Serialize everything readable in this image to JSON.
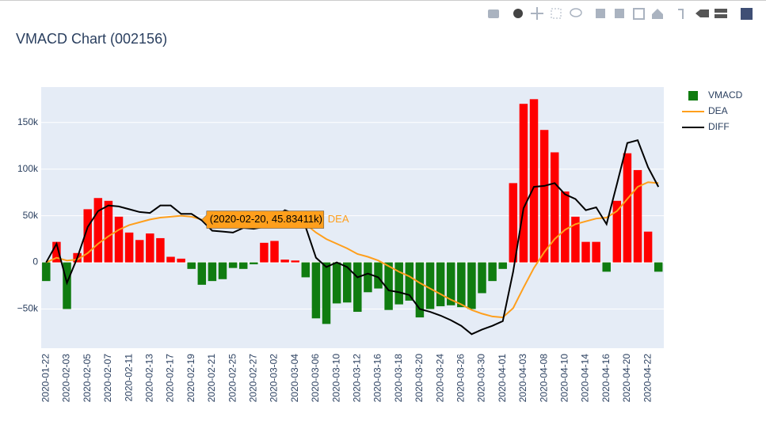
{
  "chart_data": {
    "type": "macd",
    "title": "VMACD Chart (002156)",
    "categories": [
      "2020-01-22",
      null,
      "2020-02-03",
      null,
      "2020-02-05",
      null,
      "2020-02-07",
      null,
      "2020-02-11",
      null,
      "2020-02-13",
      null,
      "2020-02-17",
      null,
      "2020-02-19",
      null,
      "2020-02-21",
      null,
      "2020-02-25",
      null,
      "2020-02-27",
      null,
      "2020-03-02",
      null,
      "2020-03-04",
      null,
      "2020-03-06",
      null,
      "2020-03-10",
      null,
      "2020-03-12",
      null,
      "2020-03-16",
      null,
      "2020-03-18",
      null,
      "2020-03-20",
      null,
      "2020-03-24",
      null,
      "2020-03-26",
      null,
      "2020-03-30",
      null,
      "2020-04-01",
      null,
      "2020-04-03",
      null,
      "2020-04-08",
      null,
      "2020-04-10",
      null,
      "2020-04-14",
      null,
      "2020-04-16",
      null,
      "2020-04-20",
      null,
      "2020-04-22",
      null
    ],
    "series": [
      {
        "name": "VMACD",
        "type": "bar",
        "color": "#107c10",
        "up_color": "#ff0000",
        "values": [
          -20000,
          22000,
          -50000,
          10000,
          57000,
          69000,
          66000,
          49000,
          32000,
          24000,
          31000,
          26000,
          6000,
          4000,
          -7000,
          -24000,
          -20000,
          -18000,
          -6000,
          -7000,
          -2000,
          21000,
          23000,
          3000,
          2000,
          -16000,
          -60000,
          -66000,
          -44000,
          -43000,
          -53000,
          -32000,
          -28000,
          -51000,
          -45000,
          -41000,
          -59000,
          -50000,
          -47000,
          -46000,
          -48000,
          -50000,
          -33000,
          -20000,
          -7000,
          85000,
          170000,
          175000,
          142000,
          118000,
          76000,
          49000,
          22000,
          22000,
          -10000,
          66000,
          117000,
          99000,
          33000,
          -10000
        ]
      },
      {
        "name": "DEA",
        "type": "line",
        "color": "#ff9f1c",
        "values": [
          0,
          5000,
          2000,
          3000,
          10000,
          20000,
          28000,
          35000,
          40000,
          43000,
          46000,
          48000,
          49000,
          50000,
          49000,
          45834.11,
          43000,
          41000,
          39000,
          39000,
          38000,
          38000,
          40000,
          42000,
          44000,
          41000,
          32000,
          25000,
          20000,
          15000,
          9000,
          6000,
          2000,
          -4000,
          -10000,
          -15000,
          -22000,
          -28000,
          -34000,
          -40000,
          -45000,
          -51000,
          -55000,
          -58000,
          -59000,
          -49000,
          -27000,
          -6000,
          11000,
          25000,
          35000,
          41000,
          44000,
          47000,
          48000,
          55000,
          68000,
          81000,
          86000,
          85000
        ]
      },
      {
        "name": "DIFF",
        "type": "line",
        "color": "#000000",
        "values": [
          0,
          20000,
          -22000,
          5000,
          38000,
          55000,
          61000,
          60000,
          57000,
          54000,
          53000,
          61000,
          61000,
          52000,
          52000,
          45000,
          34000,
          33000,
          32000,
          37000,
          36000,
          38000,
          48000,
          56000,
          52000,
          38000,
          5000,
          -5000,
          0,
          -5000,
          -16000,
          -12000,
          -16000,
          -30000,
          -32000,
          -35000,
          -50000,
          -53000,
          -57000,
          -62000,
          -68000,
          -77000,
          -72000,
          -68000,
          -63000,
          -10000,
          58000,
          81000,
          82000,
          85000,
          73000,
          68000,
          56000,
          59000,
          41000,
          84000,
          128000,
          131000,
          102000,
          81000
        ]
      }
    ],
    "ylim": [
      -92000,
      188000
    ],
    "yticks": [
      {
        "value": -50000,
        "label": "−50k"
      },
      0,
      {
        "value": 50000,
        "label": "50k"
      },
      {
        "value": 100000,
        "label": "100k"
      },
      {
        "value": 150000,
        "label": "150k"
      }
    ],
    "grid": true,
    "legend": "right",
    "hover": {
      "label": "(2020-02-20, 45.83411k)",
      "series": "DEA"
    }
  }
}
